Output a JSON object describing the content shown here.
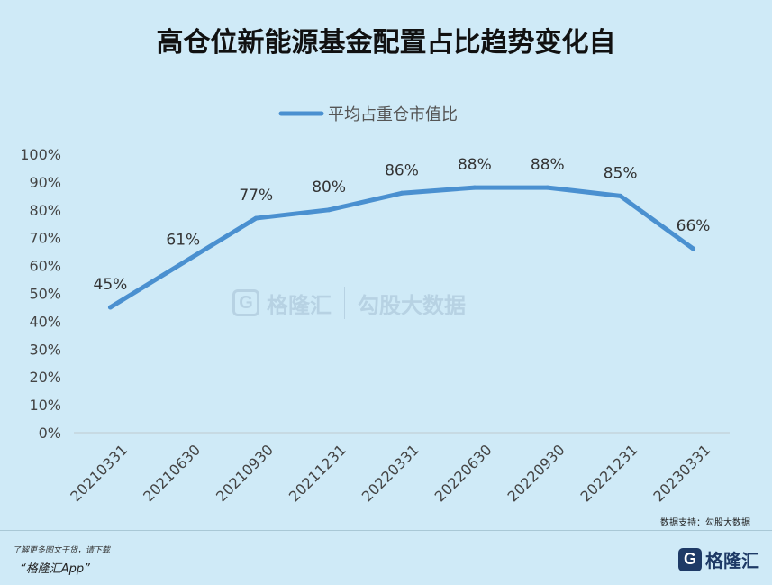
{
  "chart_data": {
    "type": "line",
    "title": "高仓位新能源基金配置占比趋势变化自",
    "legend": "top-center",
    "categories": [
      "20210331",
      "20210630",
      "20210930",
      "20211231",
      "20220331",
      "20220630",
      "20220930",
      "20221231",
      "20230331"
    ],
    "series": [
      {
        "name": "平均占重仓市值比",
        "values": [
          45,
          61,
          77,
          80,
          86,
          88,
          88,
          85,
          66
        ],
        "labels": [
          "45%",
          "61%",
          "77%",
          "80%",
          "86%",
          "88%",
          "88%",
          "85%",
          "66%"
        ]
      }
    ],
    "yticks": [
      "0%",
      "10%",
      "20%",
      "30%",
      "40%",
      "50%",
      "60%",
      "70%",
      "80%",
      "90%",
      "100%"
    ],
    "ylim": [
      0,
      100
    ],
    "grid": false,
    "color": "#4a90d0"
  },
  "watermark": {
    "brand": "格隆汇",
    "mark": "G",
    "text": "勾股大数据"
  },
  "source": "数据支持：勾股大数据",
  "footer": {
    "note": "了解更多图文干货，请下载",
    "app": "“格隆汇App”",
    "brand_mark": "G",
    "brand_name": "格隆汇"
  }
}
